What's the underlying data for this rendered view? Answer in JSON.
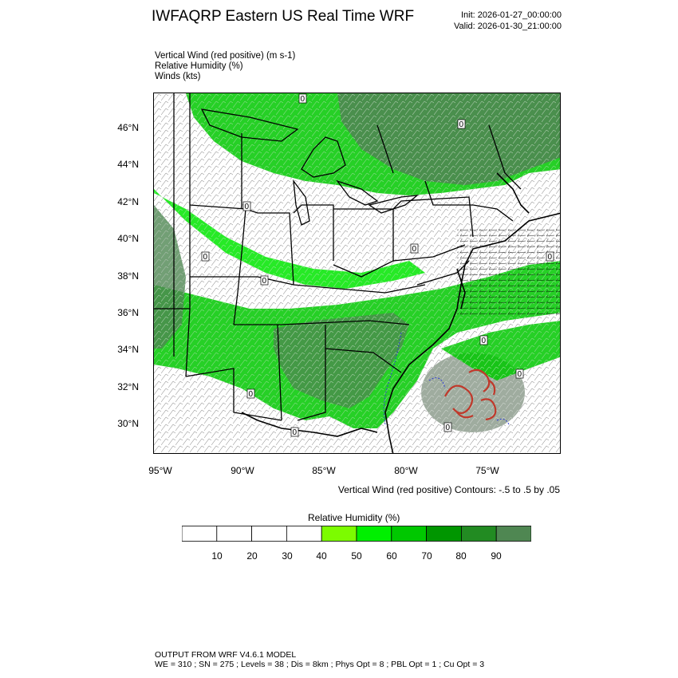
{
  "header": {
    "title": "IWFAQRP Eastern US Real Time WRF",
    "init": "Init: 2026-01-27_00:00:00",
    "valid": "Valid: 2026-01-30_21:00:00"
  },
  "fields": [
    "Vertical Wind (red positive)   (m s-1)",
    "Relative Humidity   (%)",
    "Winds   (kts)"
  ],
  "map": {
    "lat_labels": [
      "46°N",
      "44°N",
      "42°N",
      "40°N",
      "38°N",
      "36°N",
      "34°N",
      "32°N",
      "30°N"
    ],
    "lon_labels": [
      "95°W",
      "90°W",
      "85°W",
      "80°W",
      "75°W"
    ],
    "contour_labels": [
      "0",
      "0",
      "0",
      "0",
      "0",
      "0",
      "0",
      "0",
      "0",
      "0",
      "0",
      "0"
    ]
  },
  "contour_note": "Vertical Wind (red positive) Contours: -.5 to .5 by .05",
  "legend": {
    "title": "Relative Humidity   (%)",
    "labels": [
      "10",
      "20",
      "30",
      "40",
      "50",
      "60",
      "70",
      "80",
      "90"
    ],
    "colors": [
      "#ffffff",
      "#ffffff",
      "#ffffff",
      "#ffffff",
      "#7cfc00",
      "#00f000",
      "#00c800",
      "#009600",
      "#228b22",
      "#4f8752"
    ]
  },
  "footer": {
    "line1": "OUTPUT FROM WRF V4.6.1 MODEL",
    "line2": "WE = 310 ; SN = 275 ; Levels = 38 ; Dis = 8km ; Phys Opt = 8 ; PBL Opt = 1 ; Cu Opt = 3"
  }
}
